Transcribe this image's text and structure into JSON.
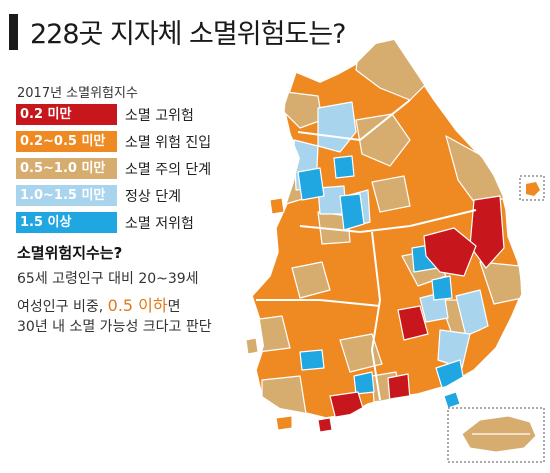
{
  "title": "228곳 지자체 소멸위험도는?",
  "legend": {
    "title": "2017년 소멸위험지수",
    "items": [
      {
        "range": "0.2 미만",
        "label": "소멸 고위험",
        "color": "#c8161d"
      },
      {
        "range": "0.2~0.5 미만",
        "label": "소멸 위험 진입",
        "color": "#ef8a22"
      },
      {
        "range": "0.5~1.0 미만",
        "label": "소멸 주의 단계",
        "color": "#d6ad6e"
      },
      {
        "range": "1.0~1.5 미만",
        "label": "정상 단계",
        "color": "#a9d4ee"
      },
      {
        "range": "1.5 이상",
        "label": "소멸 저위험",
        "color": "#20a6e0"
      }
    ]
  },
  "explanation": {
    "heading": "소멸위험지수는?",
    "line1": "65세 고령인구 대비 20~39세",
    "line2_before": "여성인구 비중,",
    "line2_value": "0.5 이하",
    "line2_after": "면",
    "line3": "30년 내 소멸 가능성 크다고 판단"
  },
  "colors": {
    "very_high": "#c8161d",
    "high": "#ef8a22",
    "caution": "#d6ad6e",
    "normal": "#a9d4ee",
    "low": "#20a6e0",
    "border": "#ffffff"
  }
}
